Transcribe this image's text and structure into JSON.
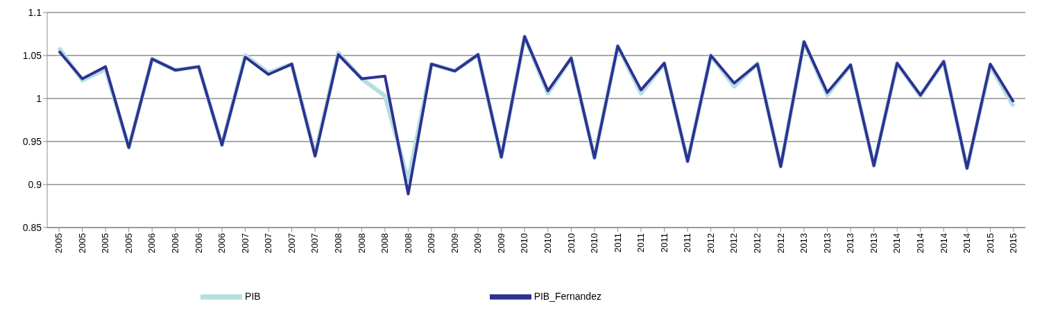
{
  "chart_data": {
    "type": "line",
    "categories": [
      "2005",
      "2005",
      "2005",
      "2005",
      "2006",
      "2006",
      "2006",
      "2006",
      "2007",
      "2007",
      "2007",
      "2007",
      "2008",
      "2008",
      "2008",
      "2008",
      "2009",
      "2009",
      "2009",
      "2009",
      "2010",
      "2010",
      "2010",
      "2010",
      "2011",
      "2011",
      "2011",
      "2011",
      "2012",
      "2012",
      "2012",
      "2012",
      "2013",
      "2013",
      "2013",
      "2013",
      "2014",
      "2014",
      "2014",
      "2014",
      "2015",
      "2015"
    ],
    "series": [
      {
        "name": "PIB",
        "color": "#b4dfe0",
        "values": [
          1.059,
          1.021,
          1.034,
          0.943,
          1.046,
          1.033,
          1.037,
          0.946,
          1.05,
          1.03,
          1.04,
          0.935,
          1.053,
          1.023,
          1.003,
          0.905,
          1.04,
          1.032,
          1.051,
          0.932,
          1.072,
          1.006,
          1.047,
          0.931,
          1.061,
          1.006,
          1.041,
          0.927,
          1.05,
          1.014,
          1.041,
          0.921,
          1.066,
          1.004,
          1.039,
          0.922,
          1.041,
          1.003,
          1.043,
          0.919,
          1.038,
          0.991
        ]
      },
      {
        "name": "PIB_Fernandez",
        "color": "#2e3192",
        "values": [
          1.055,
          1.023,
          1.037,
          0.943,
          1.046,
          1.033,
          1.037,
          0.946,
          1.048,
          1.028,
          1.04,
          0.933,
          1.051,
          1.023,
          1.026,
          0.889,
          1.04,
          1.032,
          1.051,
          0.932,
          1.072,
          1.009,
          1.047,
          0.931,
          1.061,
          1.01,
          1.041,
          0.927,
          1.05,
          1.018,
          1.04,
          0.921,
          1.066,
          1.007,
          1.039,
          0.922,
          1.041,
          1.004,
          1.043,
          0.919,
          1.04,
          0.996
        ]
      }
    ],
    "ylim": [
      0.85,
      1.1
    ],
    "yticks": [
      0.85,
      0.9,
      0.95,
      1,
      1.05,
      1.1
    ],
    "grid": "y",
    "legend": "bottom",
    "marker": "none",
    "line_style": "solid"
  }
}
